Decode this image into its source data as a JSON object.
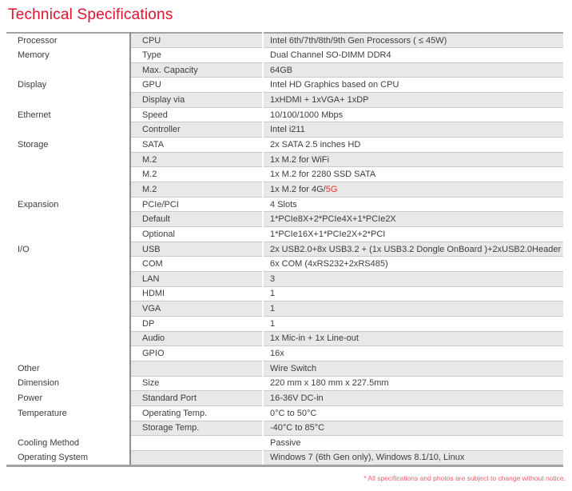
{
  "title": "Technical Specifications",
  "footnote": "* All specifications and photos are subject to change without notice.",
  "colors": {
    "title_red": "#e4112e",
    "accent_red": "#ed3124",
    "footnote_red": "#ef5e68",
    "stripe": "#e8e8e8",
    "rowline_gray": "#c9c9c9",
    "vline_gray": "#8e8e8e",
    "frame_gray": "#a3a3a3"
  },
  "table": {
    "rows": [
      {
        "category": "Processor",
        "label": "CPU",
        "value": "Intel 6th/7th/8th/9th Gen Processors ( ≤ 45W)"
      },
      {
        "category": "Memory",
        "label": "Type",
        "value": "Dual Channel SO-DIMM DDR4"
      },
      {
        "category": "",
        "label": "Max. Capacity",
        "value": "64GB"
      },
      {
        "category": "Display",
        "label": "GPU",
        "value": "Intel HD Graphics based on CPU"
      },
      {
        "category": "",
        "label": "Display via",
        "value": "1xHDMI + 1xVGA+ 1xDP"
      },
      {
        "category": "Ethernet",
        "label": "Speed",
        "value": "10/100/1000 Mbps"
      },
      {
        "category": "",
        "label": "Controller",
        "value": "Intel i211"
      },
      {
        "category": "Storage",
        "label": "SATA",
        "value": "2x SATA 2.5 inches HD"
      },
      {
        "category": "",
        "label": "M.2",
        "value": "1x M.2 for WiFi"
      },
      {
        "category": "",
        "label": "M.2",
        "value": "1x M.2 for 2280 SSD SATA"
      },
      {
        "category": "",
        "label": "M.2",
        "value": "1x M.2 for 4G/",
        "value_accent": "5G"
      },
      {
        "category": "Expansion",
        "label": "PCIe/PCI",
        "value": "4 Slots"
      },
      {
        "category": "",
        "label": "Default",
        "value": "1*PCIe8X+2*PCIe4X+1*PCIe2X"
      },
      {
        "category": "",
        "label": "Optional",
        "value": "1*PCIe16X+1*PCIe2X+2*PCI"
      },
      {
        "category": "I/O",
        "label": "USB",
        "value": "2x USB2.0+8x USB3.2 + (1x USB3.2 Dongle OnBoard )+2xUSB2.0Header"
      },
      {
        "category": "",
        "label": "COM",
        "value": "6x COM (4xRS232+2xRS485)"
      },
      {
        "category": "",
        "label": "LAN",
        "value": "3"
      },
      {
        "category": "",
        "label": "HDMI",
        "value": "1"
      },
      {
        "category": "",
        "label": "VGA",
        "value": "1"
      },
      {
        "category": "",
        "label": "DP",
        "value": "1"
      },
      {
        "category": "",
        "label": "Audio",
        "value": "1x Mic-in + 1x Line-out"
      },
      {
        "category": "",
        "label": "GPIO",
        "value": "16x"
      },
      {
        "category": "Other",
        "label": "",
        "value": "Wire Switch"
      },
      {
        "category": "Dimension",
        "label": "Size",
        "value": "220 mm x 180 mm x 227.5mm"
      },
      {
        "category": "Power",
        "label": "Standard Port",
        "value": "16-36V DC-in"
      },
      {
        "category": "Temperature",
        "label": "Operating Temp.",
        "value": "0°C to 50°C"
      },
      {
        "category": "",
        "label": "Storage Temp.",
        "value": "-40°C to 85°C"
      },
      {
        "category": "Cooling Method",
        "label": "",
        "value": "Passive"
      },
      {
        "category": "Operating System",
        "label": "",
        "value": "Windows 7 (6th Gen only), Windows 8.1/10, Linux"
      }
    ]
  }
}
